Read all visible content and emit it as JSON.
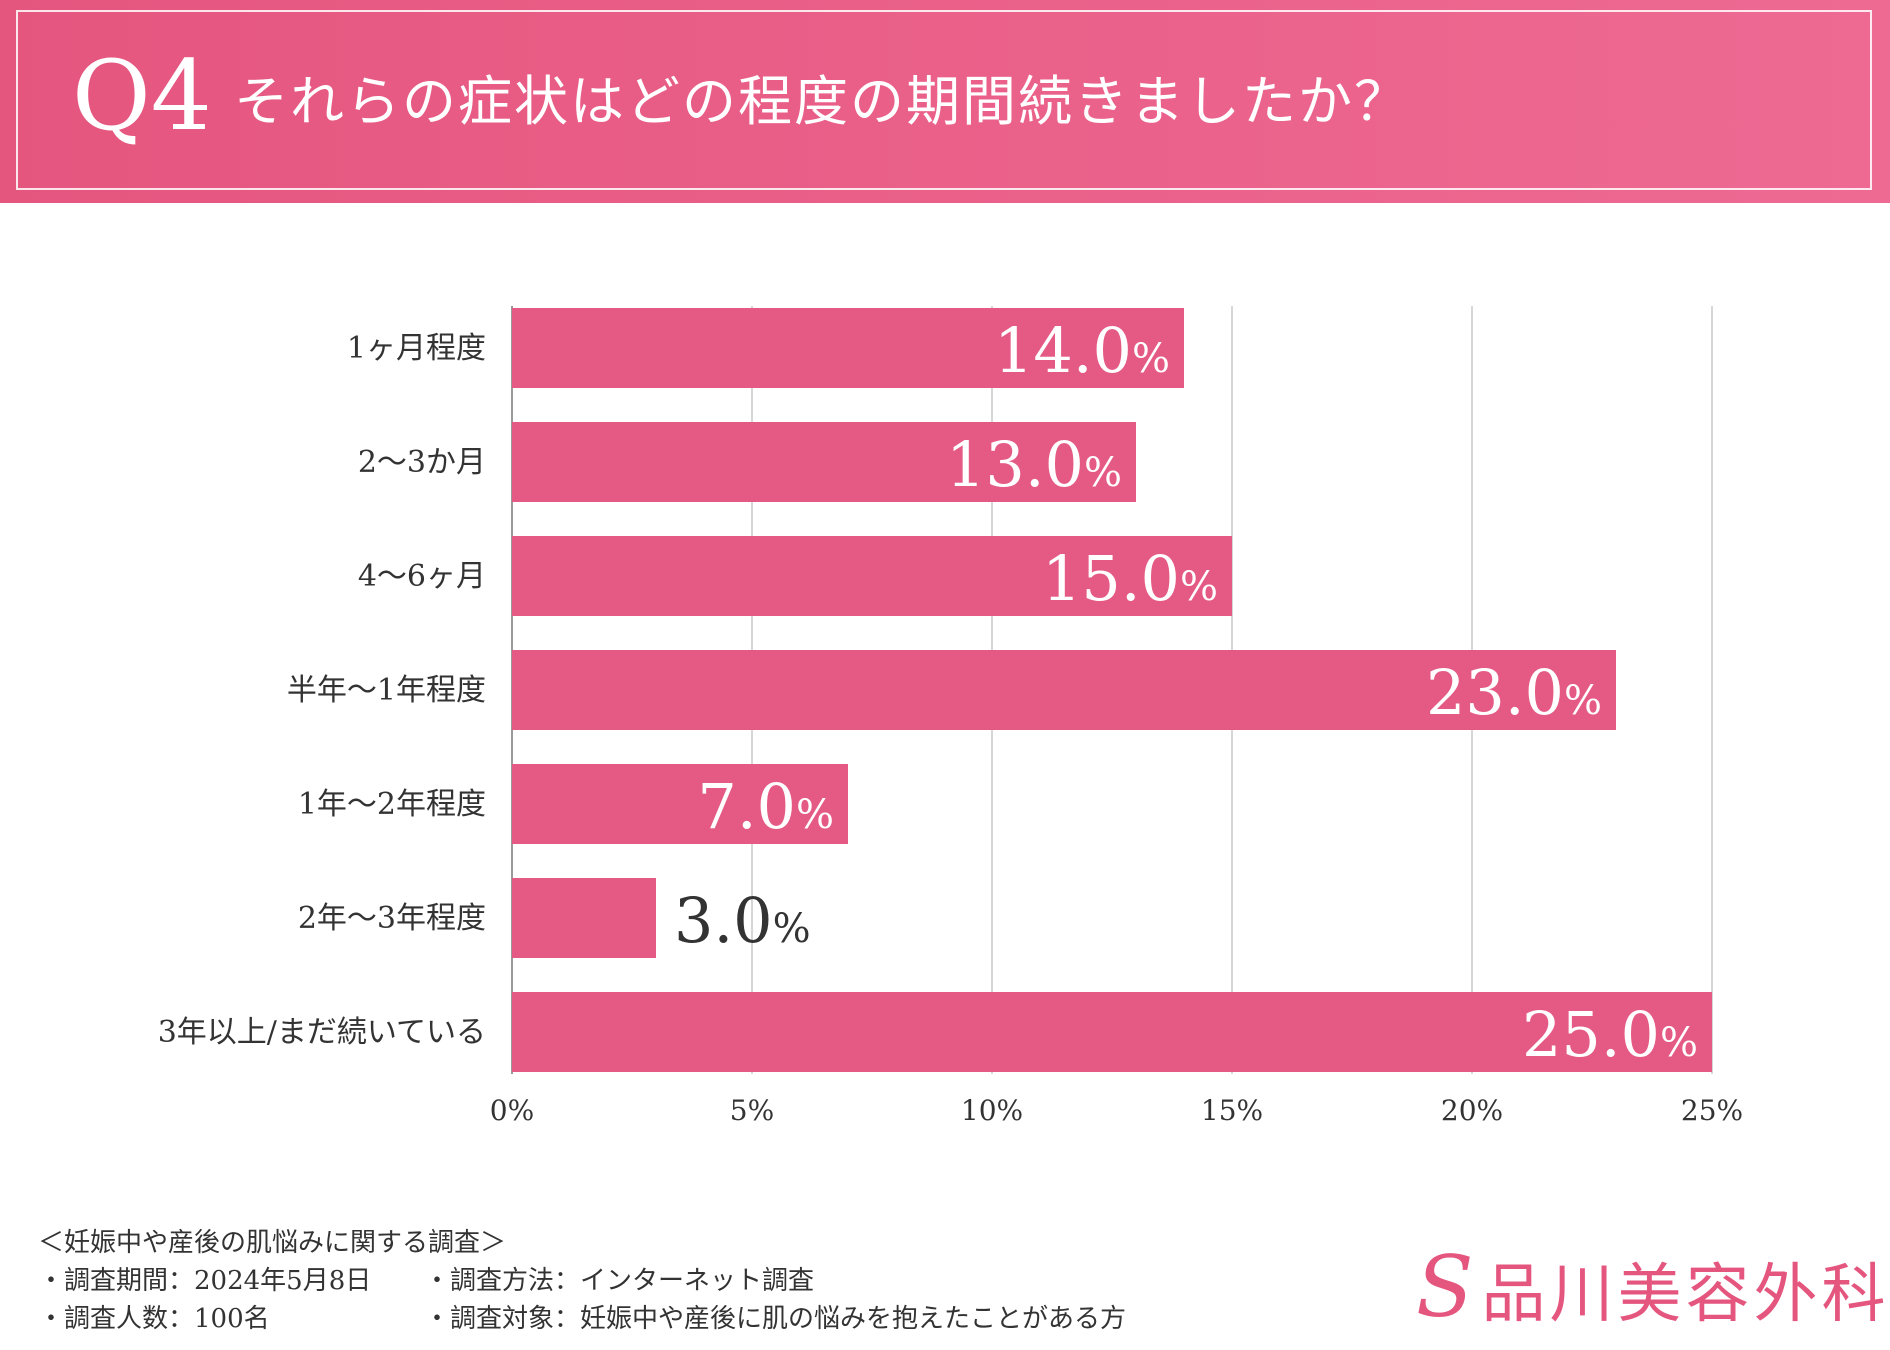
{
  "header": {
    "qnum": "Q4",
    "title": "それらの症状はどの程度の期間続きましたか？"
  },
  "chart_data": {
    "type": "bar",
    "orientation": "horizontal",
    "categories": [
      "1ヶ月程度",
      "2〜3か月",
      "4〜6ヶ月",
      "半年〜1年程度",
      "1年〜2年程度",
      "2年〜3年程度",
      "3年以上/まだ続いている"
    ],
    "values": [
      14.0,
      13.0,
      15.0,
      23.0,
      7.0,
      3.0,
      25.0
    ],
    "value_labels": [
      "14.0",
      "13.0",
      "15.0",
      "23.0",
      "7.0",
      "3.0",
      "25.0"
    ],
    "unit": "%",
    "xlim": [
      0,
      25
    ],
    "ticks": [
      "0%",
      "5%",
      "10%",
      "15%",
      "20%",
      "25%"
    ],
    "grid": true,
    "bar_color": "#e55a84"
  },
  "footer": {
    "survey_title": "＜妊娠中や産後の肌悩みに関する調査＞",
    "period": "・調査期間：2024年5月8日",
    "method": "・調査方法：インターネット調査",
    "count": "・調査人数：100名",
    "target": "・調査対象：妊娠中や産後に肌の悩みを抱えたことがある方"
  },
  "logo": {
    "mark": "S",
    "name": "品川美容外科"
  }
}
